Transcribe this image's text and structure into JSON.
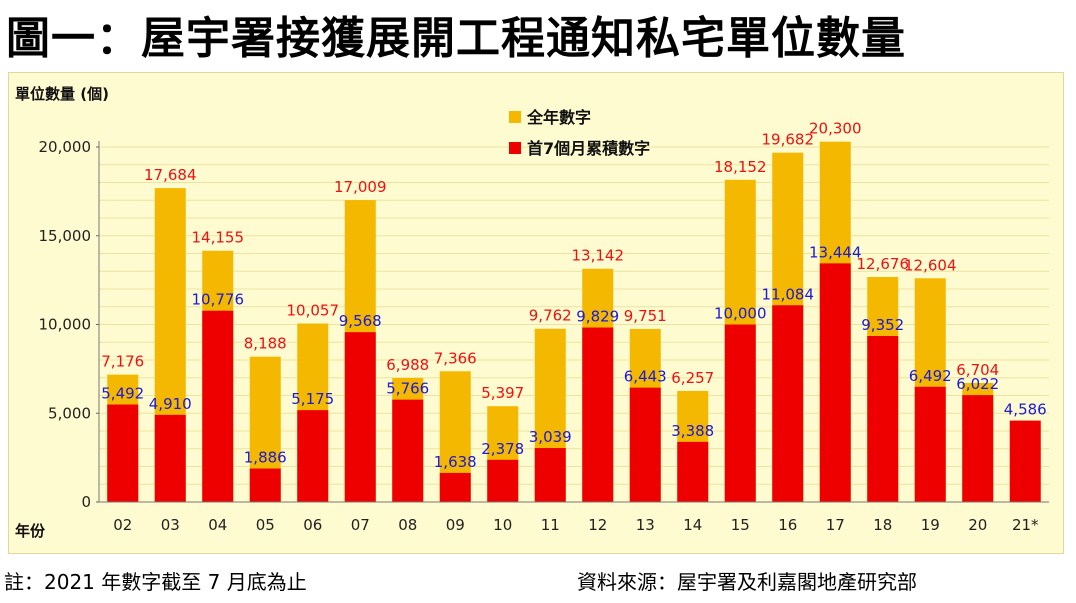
{
  "title": "圖一：屋宇署接獲展開工程通知私宅單位數量",
  "chart_data": {
    "type": "bar",
    "stacked": "overlay",
    "ylabel": "單位數量 (個)",
    "xlabel": "年份",
    "ylim": [
      0,
      20000
    ],
    "yticks": [
      0,
      5000,
      10000,
      15000,
      20000
    ],
    "ytick_labels": [
      "0",
      "5,000",
      "10,000",
      "15,000",
      "20,000"
    ],
    "categories": [
      "02",
      "03",
      "04",
      "05",
      "06",
      "07",
      "08",
      "09",
      "10",
      "11",
      "12",
      "13",
      "14",
      "15",
      "16",
      "17",
      "18",
      "19",
      "20",
      "21*"
    ],
    "series": [
      {
        "name": "全年數字",
        "color": "#f5b800",
        "label_color": "#ee1111",
        "values": [
          7176,
          17684,
          14155,
          8188,
          10057,
          17009,
          6988,
          7366,
          5397,
          9762,
          13142,
          9751,
          6257,
          18152,
          19682,
          20300,
          12676,
          12604,
          6704,
          null
        ],
        "labels": [
          "7,176",
          "17,684",
          "14,155",
          "8,188",
          "10,057",
          "17,009",
          "6,988",
          "7,366",
          "5,397",
          "9,762",
          "13,142",
          "9,751",
          "6,257",
          "18,152",
          "19,682",
          "20,300",
          "12,676",
          "12,604",
          "6,704",
          ""
        ]
      },
      {
        "name": "首7個月累積數字",
        "color": "#ee0000",
        "label_color": "#1a1ad8",
        "values": [
          5492,
          4910,
          10776,
          1886,
          5175,
          9568,
          5766,
          1638,
          2378,
          3039,
          9829,
          6443,
          3388,
          10000,
          11084,
          13444,
          9352,
          6492,
          6022,
          4586
        ],
        "labels": [
          "5,492",
          "4,910",
          "10,776",
          "1,886",
          "5,175",
          "9,568",
          "5,766",
          "1,638",
          "2,378",
          "3,039",
          "9,829",
          "6,443",
          "3,388",
          "10,000",
          "11,084",
          "13,444",
          "9,352",
          "6,492",
          "6,022",
          "4,586"
        ]
      }
    ],
    "legend": {
      "position": "top-center"
    },
    "background": "#fffbd0",
    "gridline_color": "#ece3a0"
  },
  "notes": {
    "left": "註：2021 年數字截至 7 月底為止",
    "right": "資料來源：屋宇署及利嘉閣地產研究部"
  }
}
